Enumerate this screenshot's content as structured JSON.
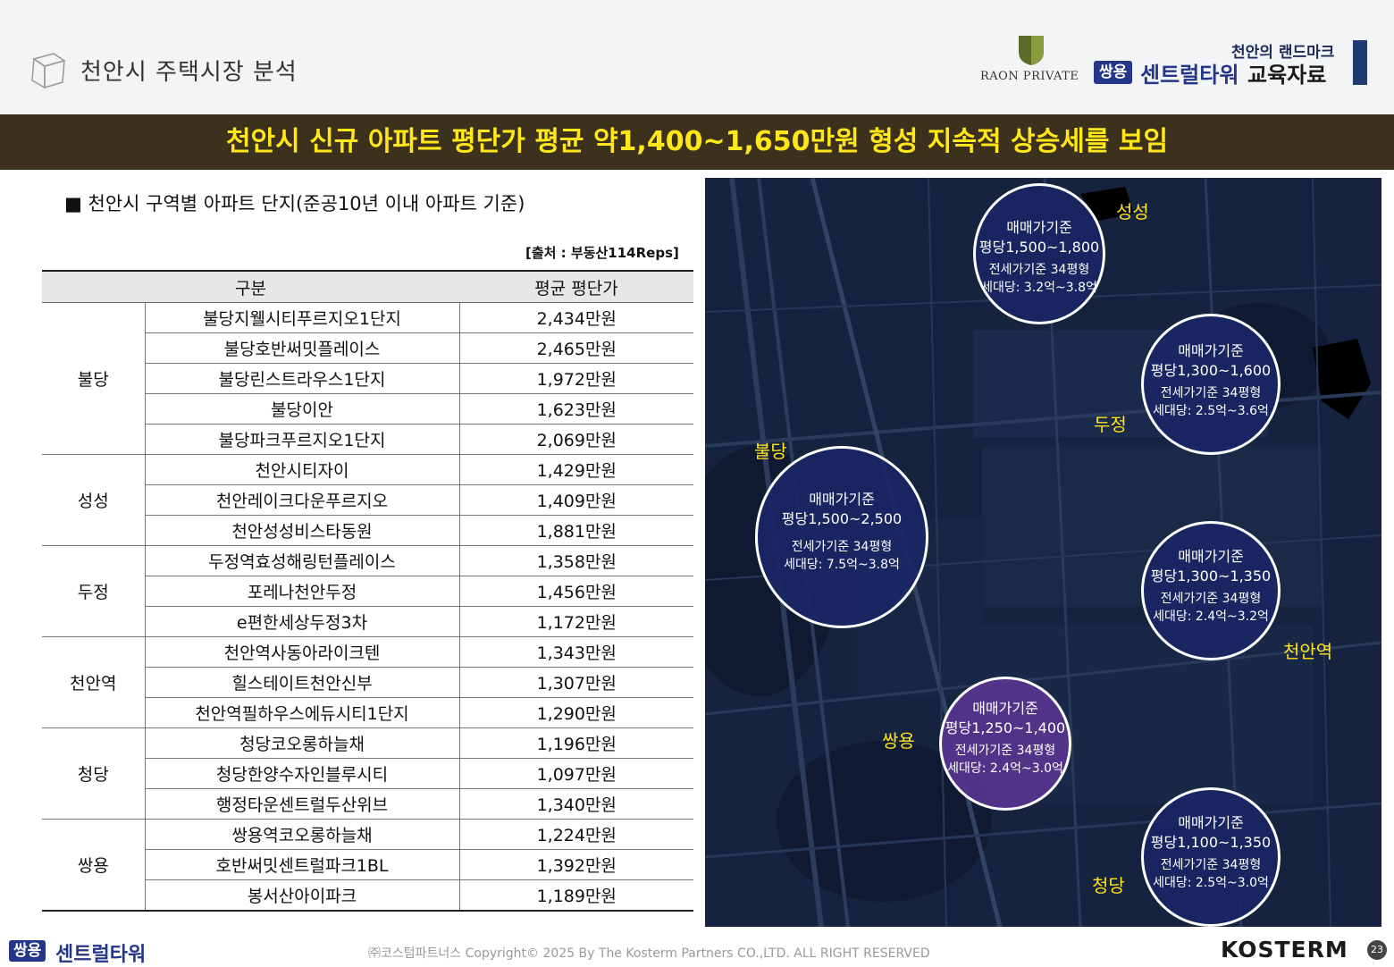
{
  "header": {
    "page_title": "천안시 주택시장 분석",
    "raon_logo_text": "RAON PRIVATE",
    "brand_tagline": "천안의 랜드마크",
    "brand_box": "쌍용",
    "brand_name": "센트럴타워",
    "brand_suffix": "교육자료"
  },
  "banner": {
    "text": "천안시 신규 아파트 평단가 평균 약1,400~1,650만원 형성 지속적 상승세를 보임"
  },
  "section": {
    "title": "■ 천안시 구역별 아파트 단지(준공10년 이내 아파트 기준)",
    "source": "[출처 : 부동산114Reps]"
  },
  "table": {
    "headers": [
      "구분",
      "평균 평단가"
    ],
    "groups": [
      {
        "region": "불당",
        "rows": [
          {
            "name": "불당지웰시티푸르지오1단지",
            "price": "2,434만원"
          },
          {
            "name": "불당호반써밋플레이스",
            "price": "2,465만원"
          },
          {
            "name": "불당린스트라우스1단지",
            "price": "1,972만원"
          },
          {
            "name": "불당이안",
            "price": "1,623만원"
          },
          {
            "name": "불당파크푸르지오1단지",
            "price": "2,069만원"
          }
        ]
      },
      {
        "region": "성성",
        "rows": [
          {
            "name": "천안시티자이",
            "price": "1,429만원"
          },
          {
            "name": "천안레이크다운푸르지오",
            "price": "1,409만원"
          },
          {
            "name": "천안성성비스타동원",
            "price": "1,881만원"
          }
        ]
      },
      {
        "region": "두정",
        "rows": [
          {
            "name": "두정역효성해링턴플레이스",
            "price": "1,358만원"
          },
          {
            "name": "포레나천안두정",
            "price": "1,456만원"
          },
          {
            "name": "e편한세상두정3차",
            "price": "1,172만원"
          }
        ]
      },
      {
        "region": "천안역",
        "rows": [
          {
            "name": "천안역사동아라이크텐",
            "price": "1,343만원"
          },
          {
            "name": "힐스테이트천안신부",
            "price": "1,307만원"
          },
          {
            "name": "천안역필하우스에듀시티1단지",
            "price": "1,290만원"
          }
        ]
      },
      {
        "region": "청당",
        "rows": [
          {
            "name": "청당코오롱하늘채",
            "price": "1,196만원"
          },
          {
            "name": "청당한양수자인블루시티",
            "price": "1,097만원"
          },
          {
            "name": "행정타운센트럴두산위브",
            "price": "1,340만원"
          }
        ]
      },
      {
        "region": "쌍용",
        "rows": [
          {
            "name": "쌍용역코오롱하늘채",
            "price": "1,224만원"
          },
          {
            "name": "호반써밋센트럴파크1BL",
            "price": "1,392만원"
          },
          {
            "name": "봉서산아이파크",
            "price": "1,189만원"
          }
        ]
      }
    ]
  },
  "map": {
    "bubbles": [
      {
        "id": "seongseong",
        "l1": "매매가기준",
        "l2": "평당1,500~1,800",
        "l3": "전세가기준 34평형",
        "l4": "세대당: 3.2억~3.8억"
      },
      {
        "id": "dujeong",
        "l1": "매매가기준",
        "l2": "평당1,300~1,600",
        "l3": "전세가기준 34평형",
        "l4": "세대당: 2.5억~3.6억"
      },
      {
        "id": "buldang",
        "l1": "매매가기준",
        "l2": "평당1,500~2,500",
        "l3": "전세가기준 34평형",
        "l4": "세대당: 7.5억~3.8억"
      },
      {
        "id": "cheonanyeok",
        "l1": "매매가기준",
        "l2": "평당1,300~1,350",
        "l3": "전세가기준 34평형",
        "l4": "세대당: 2.4억~3.2억"
      },
      {
        "id": "ssangyong",
        "l1": "매매가기준",
        "l2": "평당1,250~1,400",
        "l3": "전세가기준 34평형",
        "l4": "세대당: 2.4억~3.0억"
      },
      {
        "id": "cheongdang",
        "l1": "매매가기준",
        "l2": "평당1,100~1,350",
        "l3": "전세가기준 34평형",
        "l4": "세대당: 2.5억~3.0억"
      }
    ],
    "labels": {
      "seongseong": "성성",
      "dujeong": "두정",
      "buldang": "불당",
      "cheonanyeok": "천안역",
      "ssangyong": "쌍용",
      "cheongdang": "청당"
    }
  },
  "footer": {
    "logo_box": "쌍용",
    "logo_text": "센트럴타워",
    "copyright": "㈜코스텀파트너스 Copyright© 2025 By The Kosterm Partners CO.,LTD. ALL RIGHT RESERVED",
    "company": "KOSTERM",
    "page": "23"
  }
}
